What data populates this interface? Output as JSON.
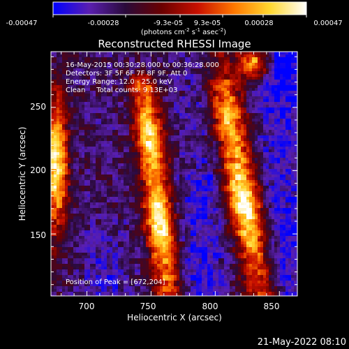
{
  "colorbar": {
    "min": -0.00047,
    "max": 0.00047,
    "stops": [
      "#0000ff",
      "#5a1fb0",
      "#2a0a3a",
      "#6a0000",
      "#c81000",
      "#ff7800",
      "#ffd830",
      "#ffffff"
    ],
    "tick_labels": [
      "-0.00047",
      "-0.00028",
      "-9.3e-05",
      "9.3e-05",
      "0.00028",
      "0.00047"
    ],
    "units_prefix": "(photons cm",
    "units_exp1": "-2",
    "units_mid": " s",
    "units_exp2": "-1",
    "units_suffix": " asec",
    "units_exp3": "-2",
    "units_close": ")"
  },
  "chart_data": {
    "type": "heatmap",
    "title": "Reconstructed RHESSI Image",
    "xlabel": "Heliocentric X (arcsec)",
    "ylabel": "Heliocentric Y (arcsec)",
    "xlim": [
      672,
      864
    ],
    "ylim": [
      101,
      294
    ],
    "xticks": [
      700,
      750,
      800,
      850
    ],
    "yticks": [
      150,
      200,
      250
    ],
    "ridges": [
      {
        "x_center": 676,
        "y_peak": 205,
        "amplitude": 0.9
      },
      {
        "x_center": 752,
        "y_peak": 160,
        "amplitude": 1.0
      },
      {
        "x_center": 818,
        "y_peak": 175,
        "amplitude": 1.0
      },
      {
        "x_center": 830,
        "y_peak": 285,
        "amplitude": 0.8
      }
    ],
    "annotations": {
      "time": "16-May-2015 00:30:28.000 to 00:36:28.000",
      "detectors": "Detectors: 3F 5F 6F 7F 8F 9F, Att 0",
      "energy": "Energy Range: 12.0 - 25.0 keV",
      "clean": "Clean     Total counts: 9.13E+03",
      "peak": "Position of Peak = [672,204]"
    }
  },
  "footer": {
    "date": "21-May-2022 08:10"
  }
}
